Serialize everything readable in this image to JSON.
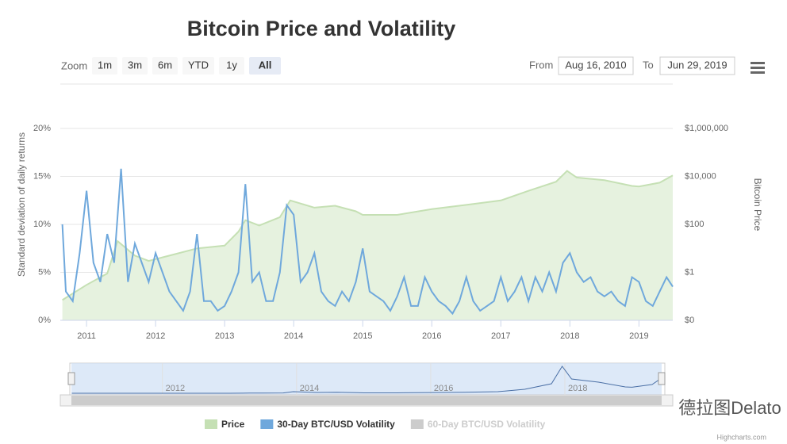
{
  "chart_data": {
    "type": "line",
    "title": "Bitcoin Price and Volatility",
    "zoom": {
      "label": "Zoom",
      "buttons": [
        "1m",
        "3m",
        "6m",
        "YTD",
        "1y",
        "All"
      ],
      "selected": 5
    },
    "range": {
      "from_label": "From",
      "from": "Aug 16, 2010",
      "to_label": "To",
      "to": "Jun 29, 2019"
    },
    "y_label": "Standard deviation of daily returns",
    "y2_label": "Bitcoin Price",
    "xlim": [
      2010.62,
      2019.49
    ],
    "xticks": [
      2011,
      2012,
      2013,
      2014,
      2015,
      2016,
      2017,
      2018,
      2019
    ],
    "ylim": [
      0,
      20
    ],
    "yticks": [
      {
        "value": 0,
        "label": "0%"
      },
      {
        "value": 5,
        "label": "5%"
      },
      {
        "value": 10,
        "label": "10%"
      },
      {
        "value": 15,
        "label": "15%"
      },
      {
        "value": 20,
        "label": "20%"
      }
    ],
    "y2_scale": "log",
    "y2lim": [
      0.01,
      1000000
    ],
    "y2ticks": [
      {
        "value": 0.01,
        "label": "$0"
      },
      {
        "value": 1,
        "label": "$1"
      },
      {
        "value": 100,
        "label": "$100"
      },
      {
        "value": 10000,
        "label": "$10,000"
      },
      {
        "value": 1000000,
        "label": "$1,000,000"
      }
    ],
    "grid": true,
    "series": [
      {
        "name": "Price",
        "color": "#c5e0b4",
        "fill": "#e6f2df",
        "kind": "area",
        "axis": "y2",
        "x": [
          2010.65,
          2011.0,
          2011.3,
          2011.45,
          2011.7,
          2011.9,
          2012.2,
          2012.6,
          2013.0,
          2013.2,
          2013.3,
          2013.5,
          2013.8,
          2013.95,
          2014.3,
          2014.6,
          2014.9,
          2015.0,
          2015.5,
          2016.0,
          2016.5,
          2017.0,
          2017.4,
          2017.8,
          2017.96,
          2018.1,
          2018.5,
          2018.9,
          2019.0,
          2019.3,
          2019.49
        ],
        "values": [
          0.07,
          0.3,
          0.9,
          20,
          5,
          3,
          5,
          10,
          13,
          50,
          150,
          90,
          200,
          1000,
          500,
          600,
          350,
          250,
          250,
          430,
          650,
          1000,
          2500,
          6000,
          17000,
          9000,
          7000,
          4000,
          3800,
          5500,
          11000
        ]
      },
      {
        "name": "30-Day BTC/USD Volatility",
        "color": "#6fa8dc",
        "kind": "line",
        "x": [
          2010.65,
          2010.7,
          2010.8,
          2010.9,
          2011.0,
          2011.1,
          2011.2,
          2011.3,
          2011.4,
          2011.5,
          2011.6,
          2011.7,
          2011.8,
          2011.9,
          2012.0,
          2012.1,
          2012.2,
          2012.3,
          2012.4,
          2012.5,
          2012.6,
          2012.7,
          2012.8,
          2012.9,
          2013.0,
          2013.1,
          2013.2,
          2013.3,
          2013.4,
          2013.5,
          2013.6,
          2013.7,
          2013.8,
          2013.9,
          2014.0,
          2014.1,
          2014.2,
          2014.3,
          2014.4,
          2014.5,
          2014.6,
          2014.7,
          2014.8,
          2014.9,
          2015.0,
          2015.1,
          2015.2,
          2015.3,
          2015.4,
          2015.5,
          2015.6,
          2015.7,
          2015.8,
          2015.9,
          2016.0,
          2016.1,
          2016.2,
          2016.3,
          2016.4,
          2016.5,
          2016.6,
          2016.7,
          2016.8,
          2016.9,
          2017.0,
          2017.1,
          2017.2,
          2017.3,
          2017.4,
          2017.5,
          2017.6,
          2017.7,
          2017.8,
          2017.9,
          2018.0,
          2018.1,
          2018.2,
          2018.3,
          2018.4,
          2018.5,
          2018.6,
          2018.7,
          2018.8,
          2018.9,
          2019.0,
          2019.1,
          2019.2,
          2019.3,
          2019.4,
          2019.49
        ],
        "values": [
          10,
          3,
          2,
          7,
          13.5,
          6,
          4,
          9,
          6,
          15.8,
          4,
          8,
          6,
          4,
          7,
          5,
          3,
          2,
          1,
          3,
          9,
          2,
          2,
          1,
          1.5,
          3,
          5,
          14.2,
          4,
          5,
          2,
          2,
          5,
          12,
          11,
          4,
          5,
          7,
          3,
          2,
          1.5,
          3,
          2,
          4,
          7.5,
          3,
          2.5,
          2,
          1,
          2.5,
          4.5,
          1.5,
          1.5,
          4.5,
          3,
          2,
          1.5,
          0.7,
          2,
          4.5,
          2,
          1,
          1.5,
          2,
          4.5,
          2,
          3,
          4.5,
          2,
          4.5,
          3,
          5,
          3,
          6,
          7,
          5,
          4,
          4.5,
          3,
          2.5,
          3,
          2,
          1.5,
          4.5,
          4,
          2,
          1.5,
          3,
          4.5,
          3.5
        ]
      },
      {
        "name": "60-Day BTC/USD Volatility",
        "color": "#cccccc",
        "kind": "line",
        "visible": false
      }
    ],
    "navigator": {
      "xticks": [
        2012,
        2014,
        2016,
        2018
      ]
    },
    "credits": "Highcharts.com",
    "watermark": "德拉图Delato"
  }
}
